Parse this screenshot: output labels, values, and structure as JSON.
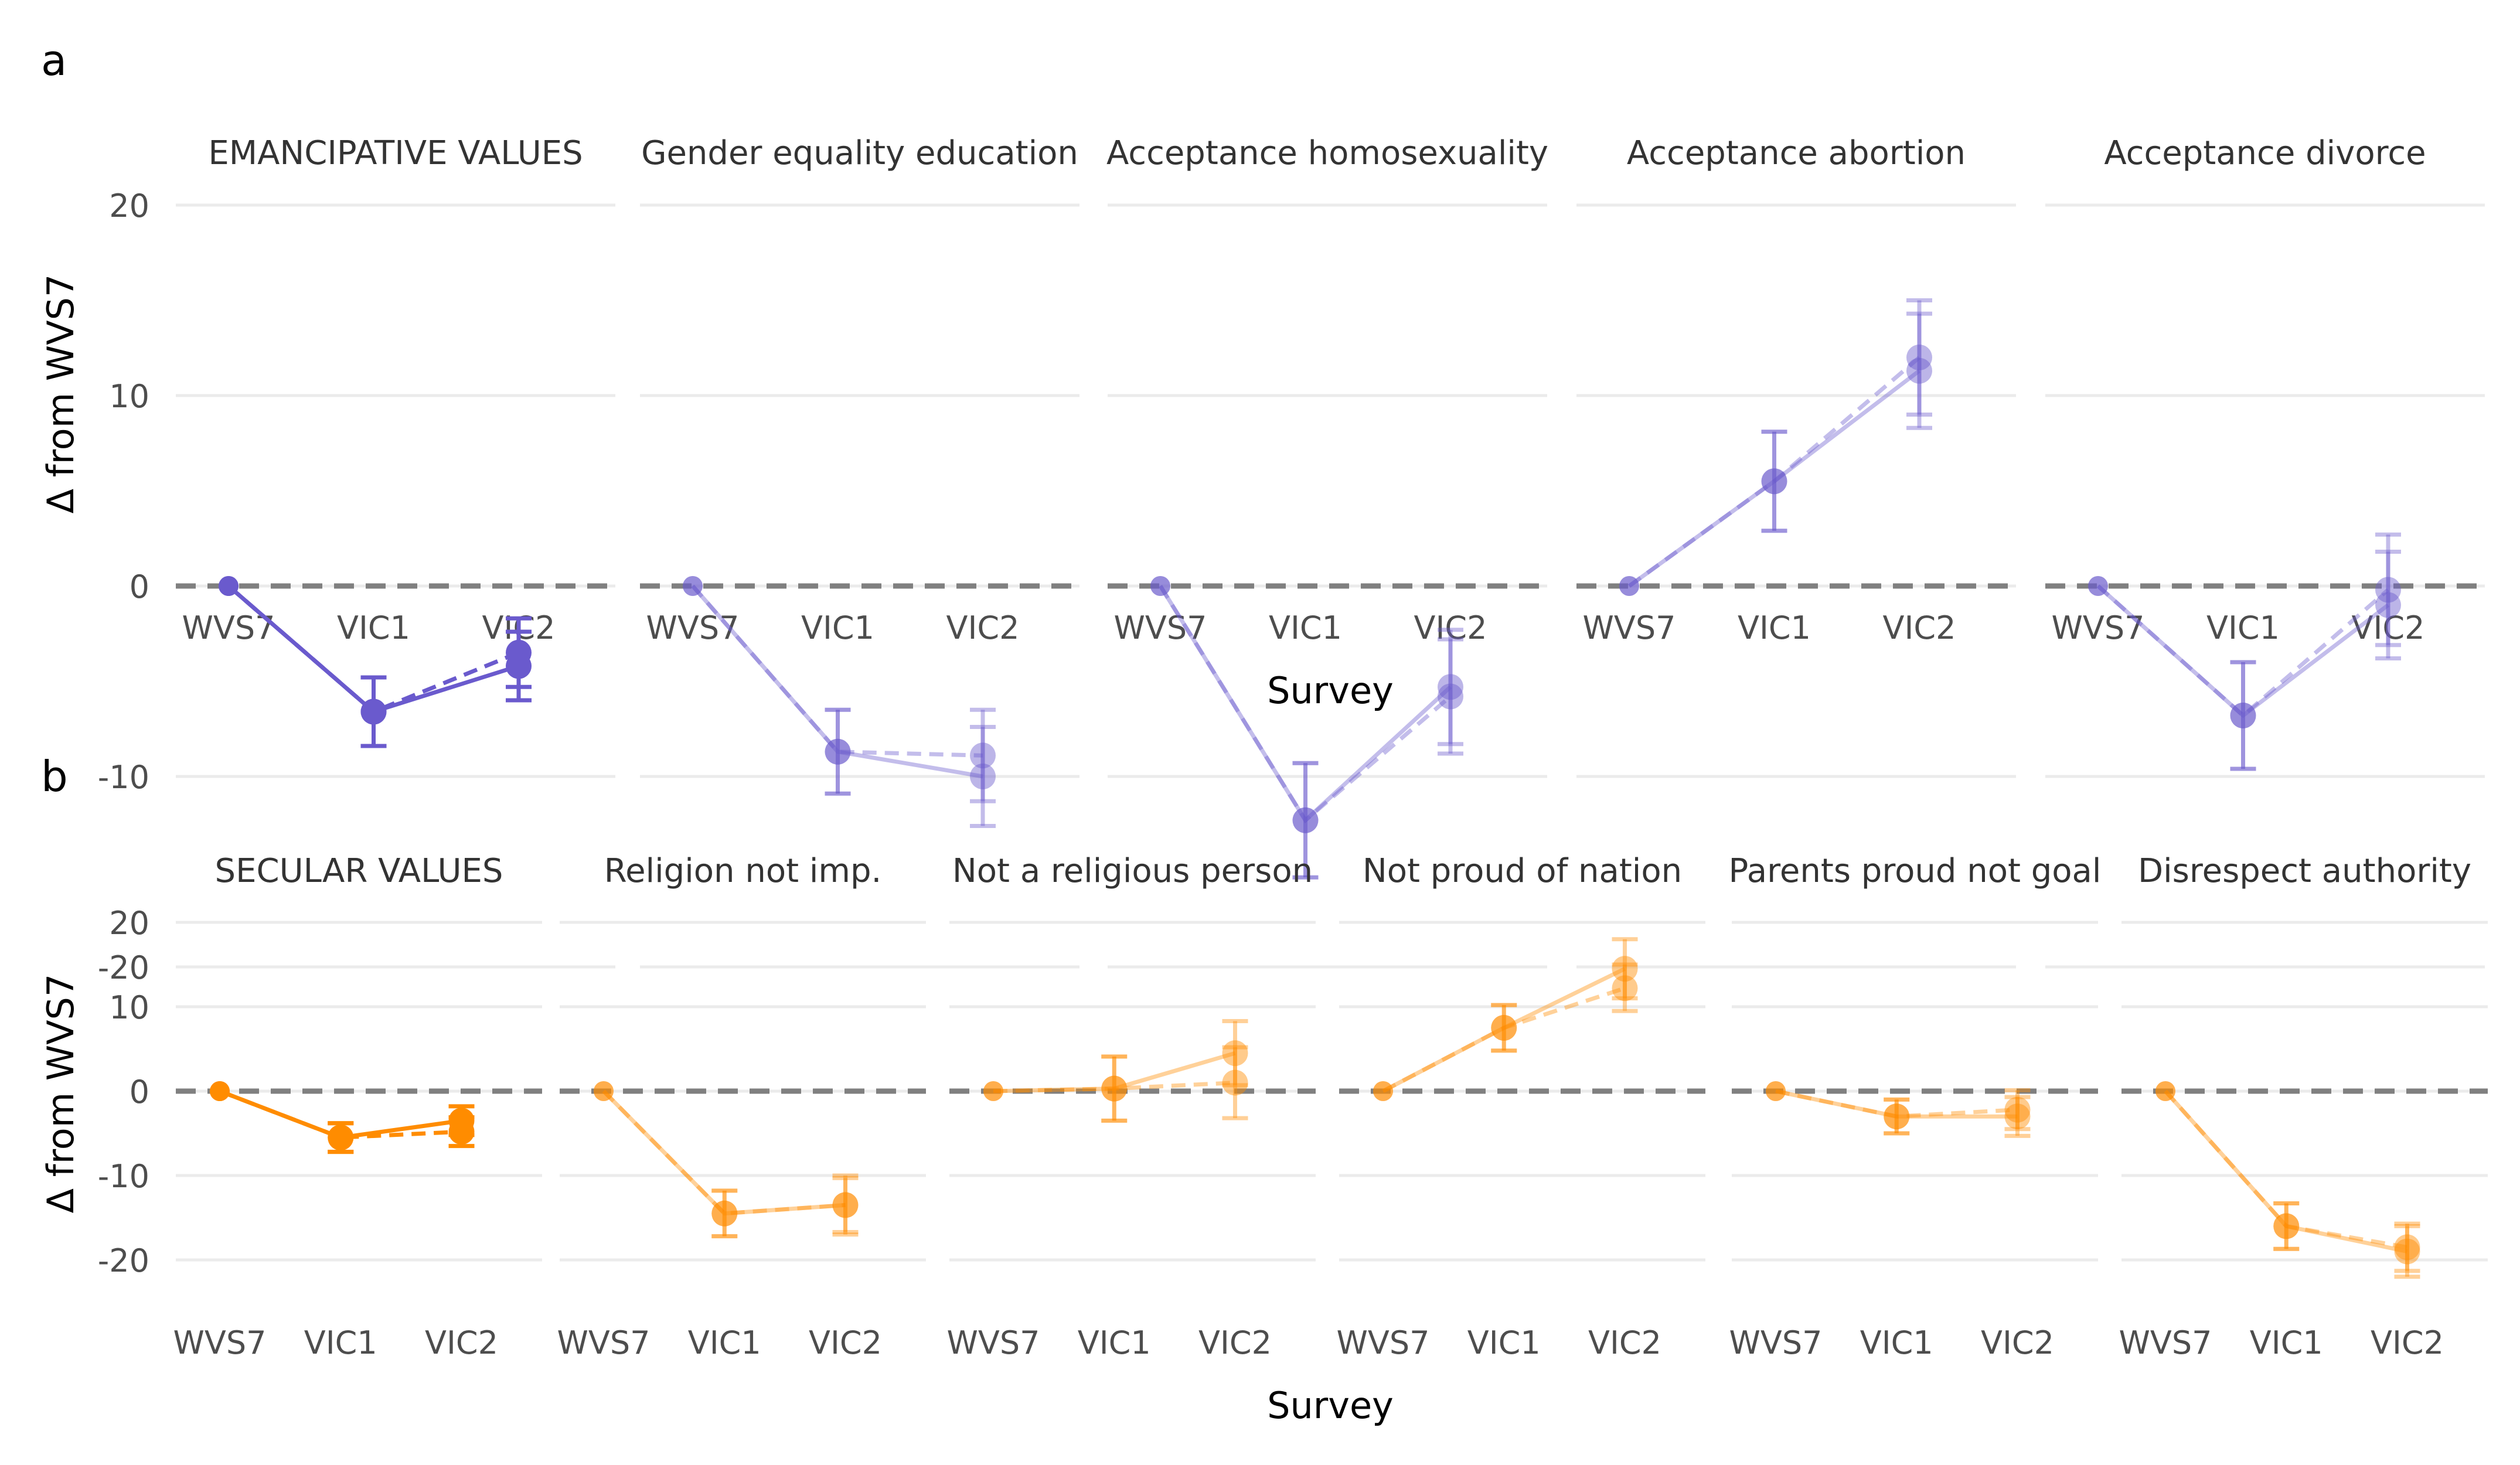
{
  "figure": {
    "panel_a_label": "a",
    "panel_b_label": "b",
    "y_axis_label": "Δ from WVS7",
    "x_axis_label": "Survey",
    "zero_line": "dashed",
    "colors": {
      "purple": "#6a5acd",
      "orange": "#ff8c00",
      "zero_line": "#808080",
      "grid": "#ebebeb",
      "text": "#333333",
      "tick_text": "#4d4d4d"
    }
  },
  "chart_data": [
    {
      "type": "line",
      "panel": "a",
      "color": "#6a5acd",
      "ylim": [
        -22,
        22
      ],
      "yticks": [
        -20,
        -10,
        0,
        10,
        20
      ],
      "categories": [
        "WVS7",
        "VIC1",
        "VIC2"
      ],
      "grid": true,
      "facets": [
        {
          "title": "EMANCIPATIVE VALUES",
          "highlight": true,
          "solid": {
            "values": [
              0,
              -6.6,
              -4.2
            ],
            "err_low": [
              0,
              -8.4,
              -6.0
            ],
            "err_high": [
              0,
              -4.8,
              -2.4
            ]
          },
          "dashed": {
            "values": [
              0,
              -6.6,
              -3.5
            ],
            "err_low": [
              0,
              -8.4,
              -5.3
            ],
            "err_high": [
              0,
              -4.8,
              -1.7
            ]
          }
        },
        {
          "title": "Gender equality education",
          "highlight": false,
          "solid": {
            "values": [
              0,
              -8.7,
              -10.0
            ],
            "err_low": [
              0,
              -10.9,
              -12.6
            ],
            "err_high": [
              0,
              -6.5,
              -7.4
            ]
          },
          "dashed": {
            "values": [
              0,
              -8.7,
              -8.9
            ],
            "err_low": [
              0,
              -10.9,
              -11.3
            ],
            "err_high": [
              0,
              -6.5,
              -6.5
            ]
          }
        },
        {
          "title": "Acceptance homosexuality",
          "highlight": false,
          "solid": {
            "values": [
              0,
              -12.3,
              -5.3
            ],
            "err_low": [
              0,
              -15.3,
              -8.3
            ],
            "err_high": [
              0,
              -9.3,
              -2.3
            ]
          },
          "dashed": {
            "values": [
              0,
              -12.3,
              -5.8
            ],
            "err_low": [
              0,
              -15.3,
              -8.8
            ],
            "err_high": [
              0,
              -9.3,
              -2.8
            ]
          }
        },
        {
          "title": "Acceptance abortion",
          "highlight": false,
          "solid": {
            "values": [
              0,
              5.5,
              11.3
            ],
            "err_low": [
              0,
              2.9,
              8.3
            ],
            "err_high": [
              0,
              8.1,
              14.3
            ]
          },
          "dashed": {
            "values": [
              0,
              5.5,
              12.0
            ],
            "err_low": [
              0,
              2.9,
              9.0
            ],
            "err_high": [
              0,
              8.1,
              15.0
            ]
          }
        },
        {
          "title": "Acceptance divorce",
          "highlight": false,
          "solid": {
            "values": [
              0,
              -6.8,
              -1.0
            ],
            "err_low": [
              0,
              -9.6,
              -3.8
            ],
            "err_high": [
              0,
              -4.0,
              1.8
            ]
          },
          "dashed": {
            "values": [
              0,
              -6.8,
              -0.2
            ],
            "err_low": [
              0,
              -9.6,
              -3.1
            ],
            "err_high": [
              0,
              -4.0,
              2.7
            ]
          }
        }
      ]
    },
    {
      "type": "line",
      "panel": "b",
      "color": "#ff8c00",
      "ylim": [
        -25,
        22
      ],
      "yticks": [
        -20,
        -10,
        0,
        10,
        20
      ],
      "categories": [
        "WVS7",
        "VIC1",
        "VIC2"
      ],
      "grid": true,
      "facets": [
        {
          "title": "SECULAR VALUES",
          "highlight": true,
          "solid": {
            "values": [
              0,
              -5.5,
              -3.5
            ],
            "err_low": [
              0,
              -7.2,
              -5.2
            ],
            "err_high": [
              0,
              -3.8,
              -1.8
            ]
          },
          "dashed": {
            "values": [
              0,
              -5.5,
              -4.8
            ],
            "err_low": [
              0,
              -7.2,
              -6.5
            ],
            "err_high": [
              0,
              -3.8,
              -3.1
            ]
          }
        },
        {
          "title": "Religion not imp.",
          "highlight": false,
          "solid": {
            "values": [
              0,
              -14.5,
              -13.5
            ],
            "err_low": [
              0,
              -17.2,
              -16.7
            ],
            "err_high": [
              0,
              -11.8,
              -10.3
            ]
          },
          "dashed": {
            "values": [
              0,
              -14.5,
              -13.5
            ],
            "err_low": [
              0,
              -17.2,
              -17.0
            ],
            "err_high": [
              0,
              -11.8,
              -10.0
            ]
          }
        },
        {
          "title": "Not a religious person",
          "highlight": false,
          "solid": {
            "values": [
              0,
              0.3,
              4.5
            ],
            "err_low": [
              0,
              -3.5,
              0.7
            ],
            "err_high": [
              0,
              4.1,
              8.3
            ]
          },
          "dashed": {
            "values": [
              0,
              0.3,
              1.0
            ],
            "err_low": [
              0,
              -3.5,
              -3.2
            ],
            "err_high": [
              0,
              4.1,
              5.2
            ]
          }
        },
        {
          "title": "Not proud of nation",
          "highlight": false,
          "solid": {
            "values": [
              0,
              7.5,
              14.5
            ],
            "err_low": [
              0,
              4.8,
              11.0
            ],
            "err_high": [
              0,
              10.2,
              18.0
            ]
          },
          "dashed": {
            "values": [
              0,
              7.5,
              12.2
            ],
            "err_low": [
              0,
              4.8,
              9.5
            ],
            "err_high": [
              0,
              10.2,
              15.0
            ]
          }
        },
        {
          "title": "Parents proud not goal",
          "highlight": false,
          "solid": {
            "values": [
              0,
              -3.0,
              -3.0
            ],
            "err_low": [
              0,
              -5.0,
              -5.3
            ],
            "err_high": [
              0,
              -1.0,
              -0.7
            ]
          },
          "dashed": {
            "values": [
              0,
              -3.0,
              -2.2
            ],
            "err_low": [
              0,
              -5.0,
              -4.5
            ],
            "err_high": [
              0,
              -1.0,
              0.1
            ]
          }
        },
        {
          "title": "Disrespect authority",
          "highlight": false,
          "solid": {
            "values": [
              0,
              -16.0,
              -19.0
            ],
            "err_low": [
              0,
              -18.7,
              -22.0
            ],
            "err_high": [
              0,
              -13.3,
              -16.0
            ]
          },
          "dashed": {
            "values": [
              0,
              -16.0,
              -18.5
            ],
            "err_low": [
              0,
              -18.7,
              -21.3
            ],
            "err_high": [
              0,
              -13.3,
              -15.7
            ]
          }
        }
      ]
    }
  ]
}
